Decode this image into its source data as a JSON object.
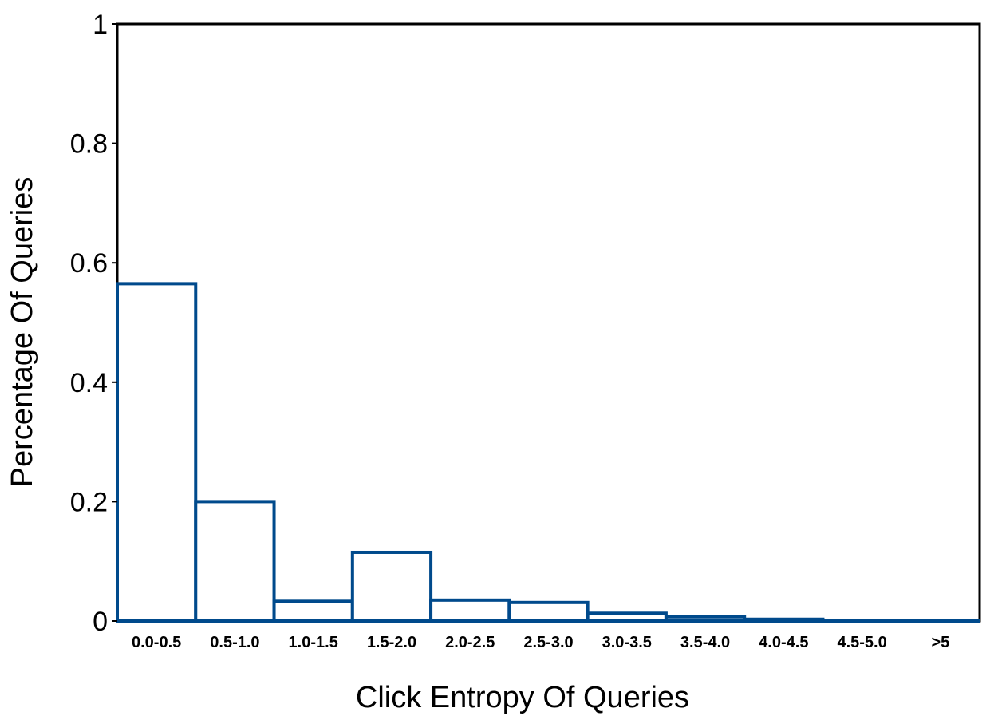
{
  "chart_data": {
    "type": "bar",
    "title": "",
    "xlabel": "Click Entropy Of Queries",
    "ylabel": "Percentage Of Queries",
    "categories": [
      "0.0-0.5",
      "0.5-1.0",
      "1.0-1.5",
      "1.5-2.0",
      "2.0-2.5",
      "2.5-3.0",
      "3.0-3.5",
      "3.5-4.0",
      "4.0-4.5",
      "4.5-5.0",
      ">5"
    ],
    "values": [
      0.565,
      0.2,
      0.033,
      0.115,
      0.035,
      0.031,
      0.013,
      0.007,
      0.003,
      0.001,
      0.0
    ],
    "ylim": [
      0,
      1
    ],
    "yticks": [
      "0",
      "0.2",
      "0.4",
      "0.6",
      "0.8",
      "1"
    ],
    "grid": false,
    "bar_fill": "#ffffff",
    "bar_stroke": "#004a8c"
  }
}
